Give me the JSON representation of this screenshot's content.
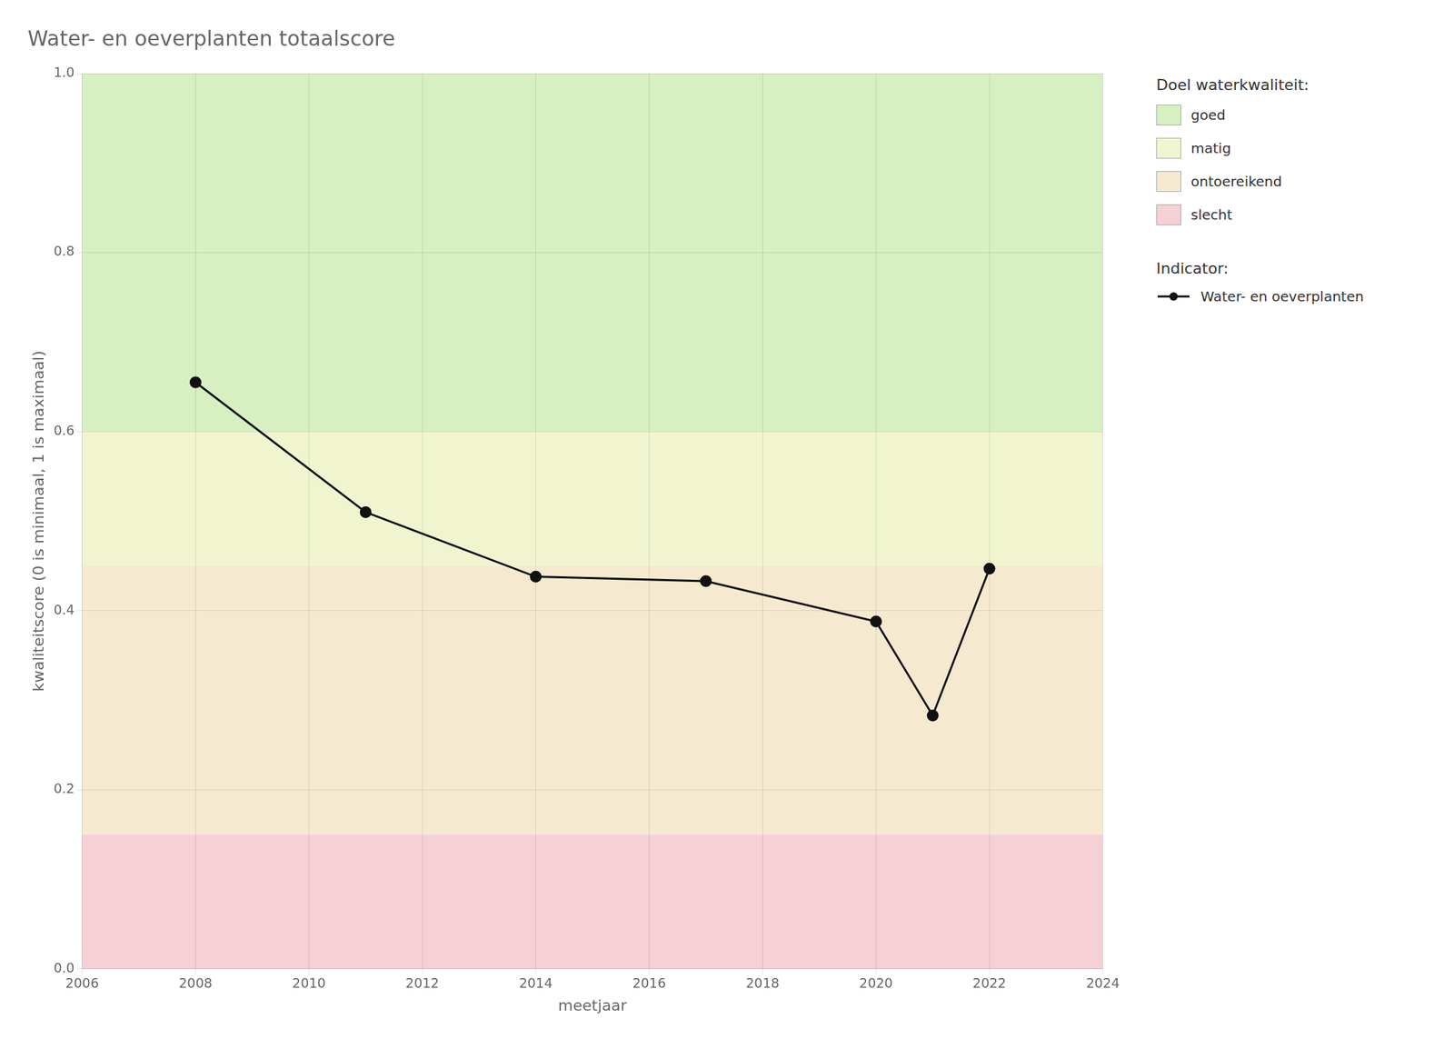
{
  "chart_data": {
    "type": "line",
    "title": "Water- en oeverplanten totaalscore",
    "x_label": "meetjaar",
    "y_label": "kwaliteitscore (0 is minimaal, 1 is maximaal)",
    "x": [
      2008,
      2011,
      2014,
      2017,
      2020,
      2021,
      2022
    ],
    "series": [
      {
        "name": "Water- en oeverplanten",
        "color": "#111111",
        "marker": "o",
        "values": [
          0.655,
          0.51,
          0.438,
          0.433,
          0.388,
          0.283,
          0.447
        ]
      }
    ],
    "series_title": "Indicator:",
    "zones_title": "Doel waterkwaliteit:",
    "zones": [
      {
        "name": "goed",
        "ymin": 0.6,
        "ymax": 1.0,
        "color": "#d6f0c2"
      },
      {
        "name": "matig",
        "ymin": 0.45,
        "ymax": 0.6,
        "color": "#f0f5d0"
      },
      {
        "name": "ontoereikend",
        "ymin": 0.15,
        "ymax": 0.45,
        "color": "#f5ead0"
      },
      {
        "name": "slecht",
        "ymin": 0.0,
        "ymax": 0.15,
        "color": "#f5d0d5"
      }
    ],
    "xlim": [
      2006,
      2024
    ],
    "xticks": [
      2006,
      2008,
      2010,
      2012,
      2014,
      2016,
      2018,
      2020,
      2022,
      2024
    ],
    "ylim": [
      0,
      1
    ],
    "yticks": [
      {
        "value": 0,
        "label": "0.0"
      },
      0.2,
      0.4,
      0.6,
      0.8,
      {
        "value": 1,
        "label": "1.0"
      }
    ],
    "grid": true,
    "legend": "right"
  }
}
